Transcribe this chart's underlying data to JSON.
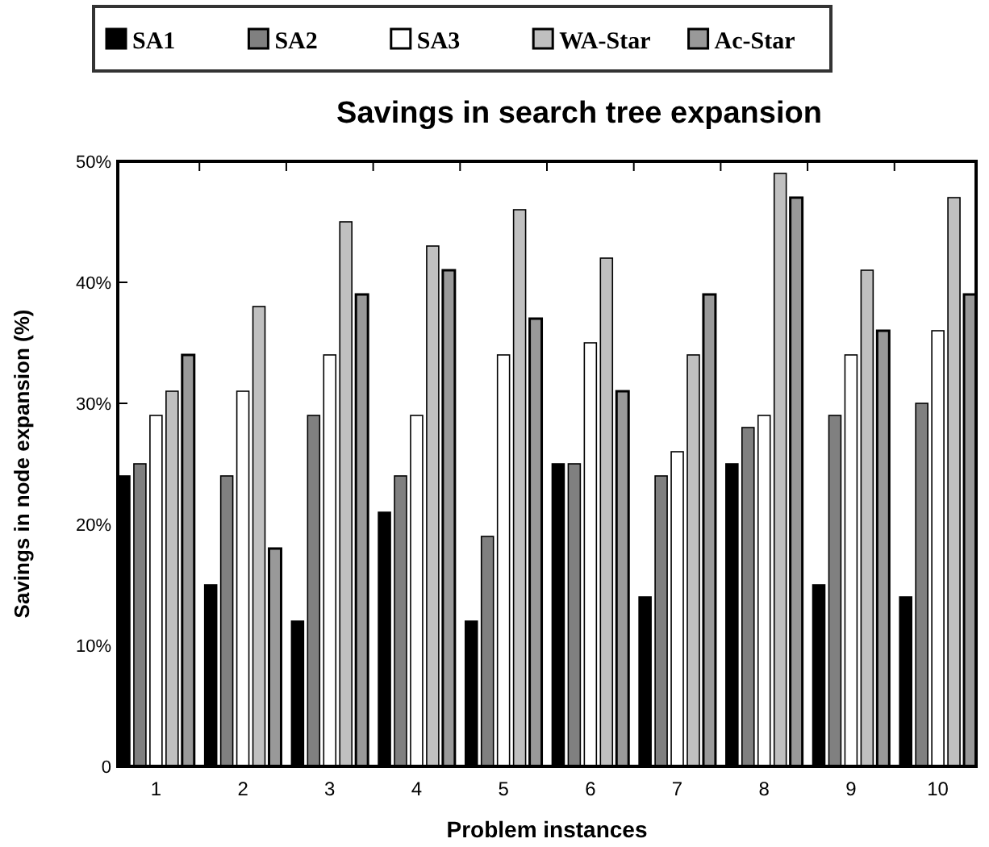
{
  "chart_data": {
    "type": "bar",
    "title": "Savings in search tree expansion",
    "xlabel": "Problem instances",
    "ylabel": "Savings in node expansion (%)",
    "categories": [
      "1",
      "2",
      "3",
      "4",
      "5",
      "6",
      "7",
      "8",
      "9",
      "10"
    ],
    "series": [
      {
        "name": "SA1",
        "color": "#000000",
        "values": [
          24,
          15,
          12,
          21,
          12,
          25,
          14,
          25,
          15,
          14
        ]
      },
      {
        "name": "SA2",
        "color": "#808080",
        "values": [
          25,
          24,
          29,
          24,
          19,
          25,
          24,
          28,
          29,
          30
        ]
      },
      {
        "name": "SA3",
        "color": "#ffffff",
        "values": [
          29,
          31,
          34,
          29,
          34,
          35,
          26,
          29,
          34,
          36
        ]
      },
      {
        "name": "WA-Star",
        "color": "#c0c0c0",
        "values": [
          31,
          38,
          45,
          43,
          46,
          42,
          34,
          49,
          41,
          47
        ]
      },
      {
        "name": "Ac-Star",
        "color": "#999999",
        "values": [
          34,
          18,
          39,
          41,
          37,
          31,
          39,
          47,
          36,
          39
        ]
      }
    ],
    "ylim": [
      0,
      50
    ],
    "yticks": [
      {
        "value": 0,
        "label": "0"
      },
      {
        "value": 10,
        "label": "10%"
      },
      {
        "value": 20,
        "label": "20%"
      },
      {
        "value": 30,
        "label": "30%"
      },
      {
        "value": 40,
        "label": "40%"
      },
      {
        "value": 50,
        "label": "50%"
      }
    ],
    "legend": "top",
    "grid": false
  }
}
